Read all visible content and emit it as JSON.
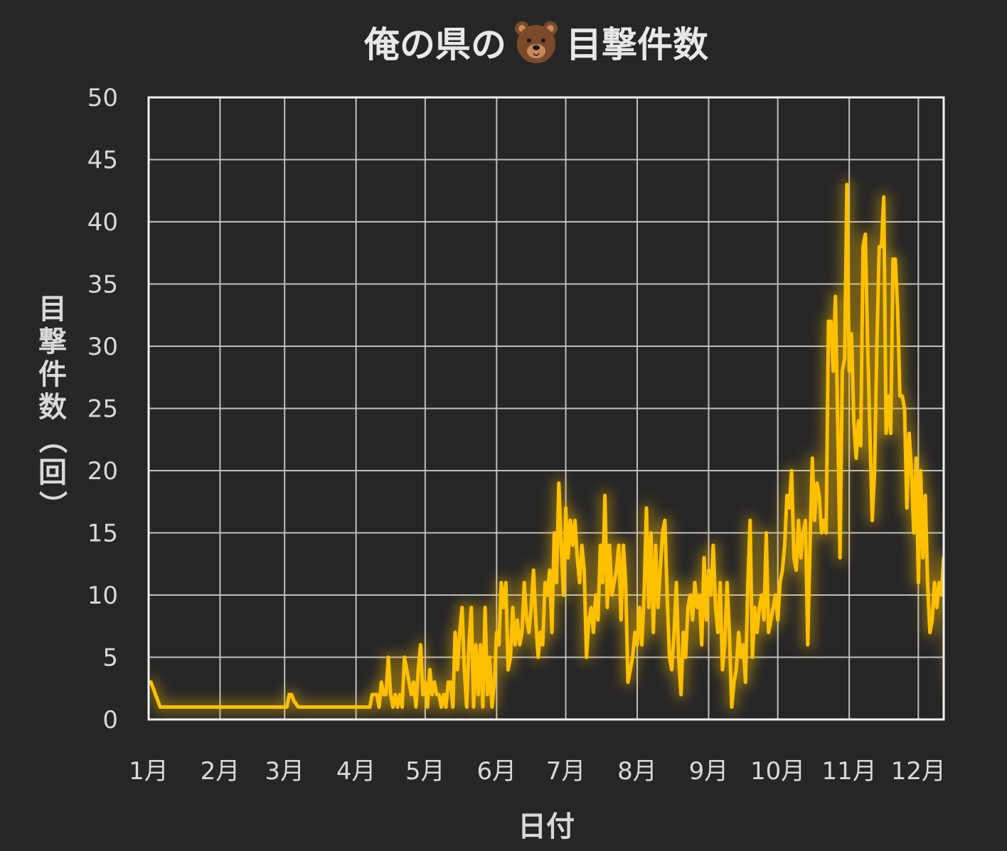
{
  "chart_data": {
    "type": "line",
    "title": "俺の県の 🐻 目撃件数",
    "title_parts": {
      "before": "俺の県の",
      "icon": "bear-face-icon",
      "after": "目撃件数"
    },
    "xlabel": "日付",
    "ylabel": "目撃件数（回）",
    "ylabel_chars": [
      "目",
      "撃",
      "件",
      "数",
      "（",
      "回",
      "）"
    ],
    "ylim": [
      0,
      50
    ],
    "yticks": [
      "0",
      "5",
      "10",
      "15",
      "20",
      "25",
      "30",
      "35",
      "40",
      "45",
      "50"
    ],
    "xlim": [
      0,
      345
    ],
    "month_labels": [
      "1月",
      "2月",
      "3月",
      "4月",
      "5月",
      "6月",
      "7月",
      "8月",
      "9月",
      "10月",
      "11月",
      "12月"
    ],
    "month_starts": [
      0,
      31,
      59,
      90,
      120,
      151,
      181,
      212,
      243,
      273,
      304,
      334
    ],
    "grid": true,
    "legend": "none",
    "line_color": "#ffc000",
    "background_color": "#262626",
    "series": [
      {
        "values": [
          [
            0,
            3
          ],
          [
            1,
            3
          ],
          [
            2,
            2.5
          ],
          [
            3,
            2
          ],
          [
            4,
            1.5
          ],
          [
            5,
            1
          ],
          [
            30,
            1
          ],
          [
            31,
            1
          ],
          [
            58,
            1
          ],
          [
            60,
            1
          ],
          [
            61,
            2
          ],
          [
            62,
            2
          ],
          [
            63,
            1.5
          ],
          [
            65,
            1
          ],
          [
            75,
            1
          ],
          [
            90,
            1
          ],
          [
            96,
            1
          ],
          [
            97,
            2
          ],
          [
            98,
            2
          ],
          [
            99,
            2
          ],
          [
            100,
            1
          ],
          [
            101,
            3
          ],
          [
            102,
            2
          ],
          [
            103,
            2
          ],
          [
            104,
            5
          ],
          [
            105,
            2
          ],
          [
            106,
            1
          ],
          [
            107,
            2
          ],
          [
            108,
            1
          ],
          [
            109,
            2
          ],
          [
            110,
            1
          ],
          [
            111,
            5
          ],
          [
            112,
            4
          ],
          [
            113,
            3
          ],
          [
            114,
            2
          ],
          [
            115,
            3
          ],
          [
            116,
            1
          ],
          [
            117,
            4
          ],
          [
            118,
            6
          ],
          [
            119,
            2
          ],
          [
            120,
            3
          ],
          [
            121,
            1
          ],
          [
            122,
            4
          ],
          [
            123,
            2
          ],
          [
            124,
            3
          ],
          [
            125,
            2
          ],
          [
            126,
            2
          ],
          [
            127,
            1
          ],
          [
            128,
            2
          ],
          [
            129,
            1
          ],
          [
            130,
            3
          ],
          [
            131,
            3
          ],
          [
            132,
            1
          ],
          [
            133,
            7
          ],
          [
            134,
            4
          ],
          [
            135,
            7
          ],
          [
            136,
            9
          ],
          [
            137,
            4
          ],
          [
            138,
            1
          ],
          [
            139,
            6
          ],
          [
            140,
            9
          ],
          [
            141,
            1
          ],
          [
            142,
            6
          ],
          [
            143,
            2
          ],
          [
            144,
            6
          ],
          [
            145,
            1
          ],
          [
            146,
            9
          ],
          [
            147,
            2
          ],
          [
            148,
            5
          ],
          [
            149,
            1
          ],
          [
            150,
            3
          ],
          [
            151,
            7
          ],
          [
            152,
            6
          ],
          [
            153,
            11
          ],
          [
            154,
            9
          ],
          [
            155,
            11
          ],
          [
            156,
            4
          ],
          [
            157,
            5
          ],
          [
            158,
            9
          ],
          [
            159,
            6
          ],
          [
            160,
            8
          ],
          [
            161,
            6
          ],
          [
            162,
            7
          ],
          [
            163,
            11
          ],
          [
            164,
            8
          ],
          [
            165,
            7
          ],
          [
            166,
            9
          ],
          [
            167,
            12
          ],
          [
            168,
            8
          ],
          [
            169,
            5
          ],
          [
            170,
            7
          ],
          [
            171,
            6
          ],
          [
            172,
            11
          ],
          [
            173,
            10
          ],
          [
            174,
            12
          ],
          [
            175,
            7
          ],
          [
            176,
            15
          ],
          [
            177,
            11
          ],
          [
            178,
            19
          ],
          [
            179,
            14
          ],
          [
            180,
            10
          ],
          [
            181,
            17
          ],
          [
            182,
            13
          ],
          [
            183,
            16
          ],
          [
            184,
            14
          ],
          [
            185,
            16
          ],
          [
            186,
            13
          ],
          [
            187,
            11
          ],
          [
            188,
            14
          ],
          [
            189,
            12
          ],
          [
            190,
            5
          ],
          [
            191,
            8
          ],
          [
            192,
            9
          ],
          [
            193,
            7
          ],
          [
            194,
            10
          ],
          [
            195,
            8
          ],
          [
            196,
            14
          ],
          [
            197,
            11
          ],
          [
            198,
            18
          ],
          [
            199,
            9
          ],
          [
            200,
            14
          ],
          [
            201,
            10
          ],
          [
            202,
            11
          ],
          [
            203,
            12
          ],
          [
            204,
            14
          ],
          [
            205,
            8
          ],
          [
            206,
            14
          ],
          [
            207,
            11
          ],
          [
            208,
            3
          ],
          [
            209,
            4
          ],
          [
            210,
            5
          ],
          [
            211,
            7
          ],
          [
            212,
            6
          ],
          [
            213,
            9
          ],
          [
            214,
            6
          ],
          [
            215,
            10
          ],
          [
            216,
            17
          ],
          [
            217,
            9
          ],
          [
            218,
            15
          ],
          [
            219,
            7
          ],
          [
            220,
            14
          ],
          [
            221,
            9
          ],
          [
            222,
            12
          ],
          [
            223,
            15
          ],
          [
            224,
            16
          ],
          [
            225,
            10
          ],
          [
            226,
            5
          ],
          [
            227,
            4
          ],
          [
            228,
            7
          ],
          [
            229,
            11
          ],
          [
            230,
            5
          ],
          [
            231,
            2
          ],
          [
            232,
            7
          ],
          [
            233,
            5
          ],
          [
            234,
            9
          ],
          [
            235,
            10
          ],
          [
            236,
            8
          ],
          [
            237,
            11
          ],
          [
            238,
            9
          ],
          [
            239,
            10
          ],
          [
            240,
            6
          ],
          [
            241,
            13
          ],
          [
            242,
            8
          ],
          [
            243,
            12
          ],
          [
            244,
            10
          ],
          [
            245,
            14
          ],
          [
            246,
            9
          ],
          [
            247,
            7
          ],
          [
            248,
            11
          ],
          [
            249,
            4
          ],
          [
            250,
            6
          ],
          [
            251,
            11
          ],
          [
            252,
            7
          ],
          [
            253,
            1
          ],
          [
            254,
            3
          ],
          [
            255,
            4
          ],
          [
            256,
            7
          ],
          [
            257,
            5
          ],
          [
            258,
            6
          ],
          [
            259,
            3
          ],
          [
            260,
            11
          ],
          [
            261,
            16
          ],
          [
            262,
            5
          ],
          [
            263,
            9
          ],
          [
            264,
            7
          ],
          [
            265,
            9
          ],
          [
            266,
            10
          ],
          [
            267,
            8
          ],
          [
            268,
            15
          ],
          [
            269,
            7
          ],
          [
            270,
            8
          ],
          [
            271,
            9
          ],
          [
            272,
            10
          ],
          [
            273,
            8
          ],
          [
            274,
            11
          ],
          [
            275,
            12
          ],
          [
            276,
            14
          ],
          [
            277,
            18
          ],
          [
            278,
            17
          ],
          [
            279,
            20
          ],
          [
            280,
            13
          ],
          [
            281,
            12
          ],
          [
            282,
            16
          ],
          [
            283,
            13
          ],
          [
            284,
            15
          ],
          [
            285,
            16
          ],
          [
            286,
            6
          ],
          [
            287,
            14
          ],
          [
            288,
            21
          ],
          [
            289,
            16
          ],
          [
            290,
            19
          ],
          [
            291,
            18
          ],
          [
            292,
            15
          ],
          [
            293,
            16
          ],
          [
            294,
            15
          ],
          [
            295,
            32
          ],
          [
            296,
            32
          ],
          [
            297,
            28
          ],
          [
            298,
            34
          ],
          [
            299,
            24
          ],
          [
            300,
            13
          ],
          [
            301,
            28
          ],
          [
            302,
            29
          ],
          [
            303,
            43
          ],
          [
            304,
            28
          ],
          [
            305,
            31
          ],
          [
            306,
            24
          ],
          [
            307,
            21
          ],
          [
            308,
            24
          ],
          [
            309,
            22
          ],
          [
            310,
            38
          ],
          [
            311,
            39
          ],
          [
            312,
            30
          ],
          [
            313,
            23
          ],
          [
            314,
            16
          ],
          [
            315,
            20
          ],
          [
            316,
            30
          ],
          [
            317,
            38
          ],
          [
            318,
            38
          ],
          [
            319,
            42
          ],
          [
            320,
            23
          ],
          [
            321,
            26
          ],
          [
            322,
            23
          ],
          [
            323,
            37
          ],
          [
            324,
            37
          ],
          [
            325,
            33
          ],
          [
            326,
            26
          ],
          [
            327,
            26
          ],
          [
            328,
            25
          ],
          [
            329,
            17
          ],
          [
            330,
            23
          ],
          [
            331,
            20
          ],
          [
            332,
            15
          ],
          [
            333,
            21
          ],
          [
            334,
            11
          ],
          [
            335,
            20
          ],
          [
            336,
            13
          ],
          [
            337,
            18
          ],
          [
            338,
            11
          ],
          [
            339,
            7
          ],
          [
            340,
            8
          ],
          [
            341,
            11
          ],
          [
            342,
            9
          ],
          [
            343,
            11
          ],
          [
            344,
            10
          ],
          [
            345,
            13
          ],
          [
            346,
            9
          ],
          [
            347,
            8
          ],
          [
            348,
            5
          ],
          [
            349,
            3
          ],
          [
            350,
            3
          ],
          [
            351,
            2
          ],
          [
            352,
            5
          ],
          [
            353,
            3
          ],
          [
            354,
            1
          ],
          [
            355,
            6
          ],
          [
            356,
            2
          ],
          [
            357,
            2
          ]
        ]
      }
    ]
  }
}
